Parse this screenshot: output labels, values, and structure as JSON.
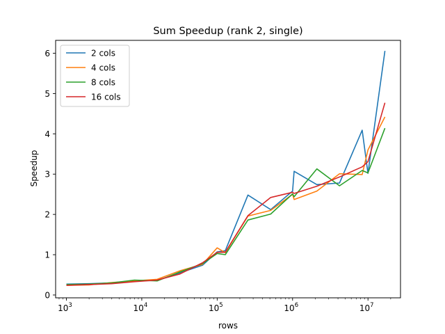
{
  "chart_data": {
    "type": "line",
    "title": "Sum Speedup (rank 2, single)",
    "xlabel": "rows",
    "ylabel": "Speedup",
    "x_scale": "log",
    "xlim": [
      720,
      27000000
    ],
    "ylim": [
      -0.07,
      6.32
    ],
    "x_ticks": [
      {
        "value": 1000,
        "base": "10",
        "exp": "3"
      },
      {
        "value": 10000,
        "base": "10",
        "exp": "4"
      },
      {
        "value": 100000,
        "base": "10",
        "exp": "5"
      },
      {
        "value": 1000000,
        "base": "10",
        "exp": "6"
      },
      {
        "value": 10000000,
        "base": "10",
        "exp": "7"
      }
    ],
    "y_ticks": [
      0,
      1,
      2,
      3,
      4,
      5,
      6
    ],
    "grid": false,
    "legend_position": "top-left",
    "x": [
      1000,
      2000,
      4000,
      8000,
      16000,
      32000,
      64000,
      100000,
      128000,
      256000,
      512000,
      1000000,
      1048576,
      2097152,
      4194304,
      8388608,
      10000000,
      16777216
    ],
    "series": [
      {
        "name": "2 cols",
        "color": "#1f77b4",
        "values": [
          0.27,
          0.28,
          0.3,
          0.35,
          0.36,
          0.55,
          0.74,
          1.07,
          1.1,
          2.48,
          2.12,
          2.58,
          3.07,
          2.74,
          2.78,
          4.09,
          3.02,
          6.06
        ]
      },
      {
        "name": "4 cols",
        "color": "#ff7f0e",
        "values": [
          0.24,
          0.25,
          0.31,
          0.35,
          0.39,
          0.6,
          0.76,
          1.17,
          1.05,
          1.96,
          2.1,
          2.5,
          2.37,
          2.58,
          3.01,
          2.99,
          3.6,
          4.42
        ]
      },
      {
        "name": "8 cols",
        "color": "#2ca02c",
        "values": [
          0.26,
          0.27,
          0.3,
          0.37,
          0.35,
          0.57,
          0.78,
          1.03,
          1.0,
          1.86,
          2.01,
          2.51,
          2.44,
          3.13,
          2.71,
          3.09,
          3.03,
          4.14
        ]
      },
      {
        "name": "16 cols",
        "color": "#d62728",
        "values": [
          0.24,
          0.26,
          0.28,
          0.33,
          0.37,
          0.52,
          0.8,
          1.06,
          1.06,
          1.97,
          2.42,
          2.55,
          2.52,
          2.7,
          2.93,
          3.18,
          3.31,
          4.77
        ]
      }
    ]
  }
}
